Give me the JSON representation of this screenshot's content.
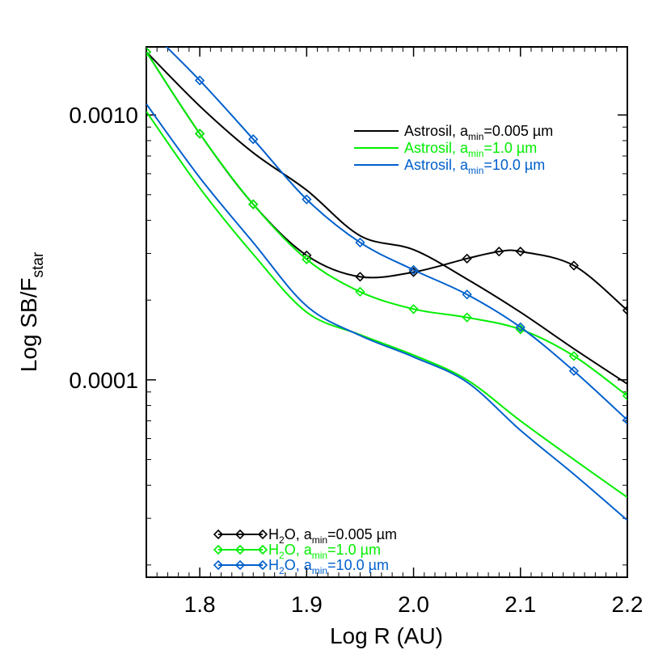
{
  "chart_data": {
    "type": "line",
    "xlabel": "Log R (AU)",
    "ylabel_main": "Log SB/F",
    "ylabel_sub": "star",
    "xlim": [
      1.75,
      2.2
    ],
    "ylim": [
      1.798e-05,
      0.0018072
    ],
    "y_scale": "log",
    "x_ticks": [
      1.8,
      1.9,
      2.0,
      2.1,
      2.2
    ],
    "x_tick_labels": [
      "1.8",
      "1.9",
      "2.0",
      "2.1",
      "2.2"
    ],
    "y_ticks": [
      0.001,
      0.0001
    ],
    "y_tick_labels": [
      "0.0010",
      "0.0001"
    ],
    "legend_top_right": [
      {
        "material": "Astrosil",
        "amin": "0.005 µm",
        "color": "#000000"
      },
      {
        "material": "Astrosil",
        "amin": "1.0 µm",
        "color": "#00ee00"
      },
      {
        "material": "Astrosil",
        "amin": "10.0 µm",
        "color": "#0060cc"
      }
    ],
    "legend_bottom_left": [
      {
        "material": "H2O",
        "amin": "0.005 µm",
        "color": "#000000"
      },
      {
        "material": "H2O",
        "amin": "1.0 µm",
        "color": "#00ee00"
      },
      {
        "material": "H2O",
        "amin": "10.0 µm",
        "color": "#0060cc"
      }
    ],
    "series": [
      {
        "key": "astrosil_0005",
        "color": "#000000",
        "marker": "none",
        "x": [
          1.75,
          1.8,
          1.85,
          1.9,
          1.95,
          2.0,
          2.05,
          2.1,
          2.15,
          2.2
        ],
        "y": [
          0.00173,
          0.00108,
          0.00072,
          0.00052,
          0.00035,
          0.00031,
          0.00024,
          0.00018,
          0.000131,
          9.65e-05
        ]
      },
      {
        "key": "astrosil_1",
        "color": "#00ee00",
        "marker": "none",
        "x": [
          1.75,
          1.8,
          1.85,
          1.9,
          1.95,
          2.0,
          2.05,
          2.1,
          2.15,
          2.2
        ],
        "y": [
          0.00103,
          0.00053,
          0.000298,
          0.00018,
          0.000148,
          0.000124,
          0.0001,
          7e-05,
          5e-05,
          3.6e-05
        ]
      },
      {
        "key": "astrosil_10",
        "color": "#0060cc",
        "marker": "none",
        "x": [
          1.75,
          1.8,
          1.85,
          1.9,
          1.95,
          2.0,
          2.05,
          2.1,
          2.15,
          2.2
        ],
        "y": [
          0.0011,
          0.00058,
          0.00033,
          0.00019,
          0.000147,
          0.000122,
          9.8e-05,
          6.45e-05,
          4.4e-05,
          2.95e-05
        ]
      },
      {
        "key": "h2o_0005",
        "color": "#000000",
        "marker": "diamond",
        "x": [
          1.75,
          1.8,
          1.85,
          1.9,
          1.95,
          2.0,
          2.05,
          2.08,
          2.1,
          2.15,
          2.2
        ],
        "y": [
          0.00173,
          0.00085,
          0.00046,
          0.000295,
          0.000245,
          0.000255,
          0.000287,
          0.000305,
          0.000305,
          0.00027,
          0.000183
        ]
      },
      {
        "key": "h2o_1",
        "color": "#00ee00",
        "marker": "diamond",
        "x": [
          1.75,
          1.8,
          1.85,
          1.9,
          1.95,
          2.0,
          2.05,
          2.1,
          2.15,
          2.2
        ],
        "y": [
          0.00173,
          0.00085,
          0.00046,
          0.000285,
          0.000215,
          0.000185,
          0.000172,
          0.000155,
          0.000123,
          8.7e-05
        ]
      },
      {
        "key": "h2o_10",
        "color": "#0060cc",
        "marker": "diamond",
        "x": [
          1.75,
          1.8,
          1.85,
          1.9,
          1.95,
          2.0,
          2.05,
          2.1,
          2.15,
          2.2
        ],
        "y": [
          0.00215,
          0.00135,
          0.00081,
          0.00048,
          0.00033,
          0.00026,
          0.00021,
          0.000158,
          0.000108,
          7.05e-05
        ]
      }
    ]
  }
}
